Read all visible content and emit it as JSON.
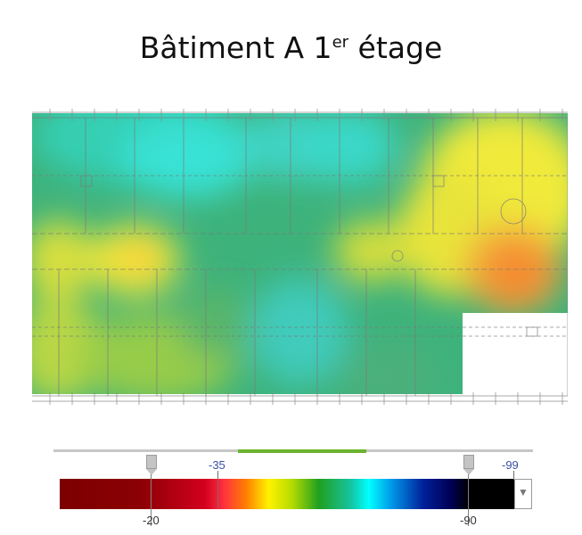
{
  "title": {
    "main": "Bâtiment A 1",
    "superscript": "er",
    "suffix": " étage"
  },
  "heatmap": {
    "colors": {
      "strong": "#ff8c1a",
      "good": "#ffee33",
      "medium": "#32aa64",
      "weak": "#2fe0d9",
      "wall": "#777777"
    },
    "zones": [
      "strong",
      "good",
      "medium",
      "weak"
    ]
  },
  "legend": {
    "scale": {
      "min_label": "-20",
      "max_label": "-90",
      "upper_threshold": "-35",
      "lower_bound": "-99"
    },
    "dropdown_arrow": "▼"
  }
}
